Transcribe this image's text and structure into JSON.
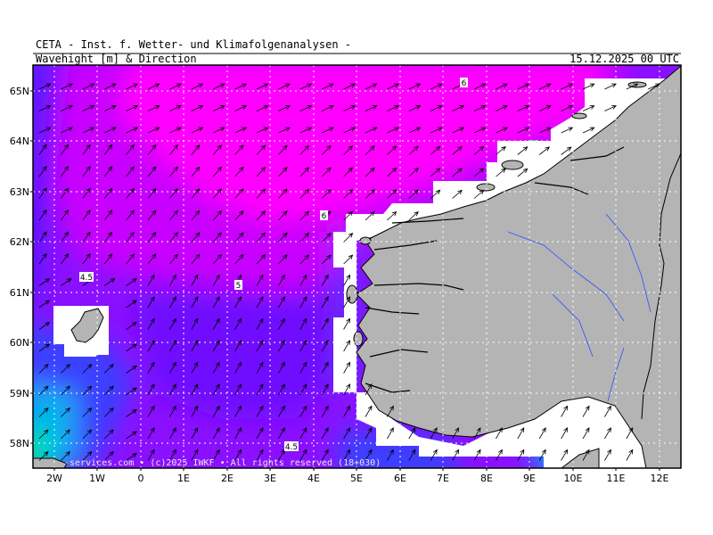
{
  "header": {
    "institution": "CETA - Inst. f. Wetter- und Klimafolgenanalysen -",
    "parameter": "Wavehight [m] & Direction",
    "valid_time": "15.12.2025 00 UTC"
  },
  "axes": {
    "lat_labels": [
      "65N",
      "64N",
      "63N",
      "62N",
      "61N",
      "60N",
      "59N",
      "58N"
    ],
    "lon_labels": [
      "2W",
      "1W",
      "0",
      "1E",
      "2E",
      "3E",
      "4E",
      "5E",
      "6E",
      "7E",
      "8E",
      "9E",
      "10E",
      "11E",
      "12E"
    ]
  },
  "contour_labels": [
    "6",
    "6",
    "5",
    "4.5",
    "4.5"
  ],
  "credit": "-services.com • (c)2025 IWKF • All rights reserved (18+030)",
  "colors": {
    "wave_6m": "#ff00ff",
    "wave_5m": "#c000ff",
    "wave_4m": "#8000ff",
    "wave_3m": "#4020ff",
    "wave_2m": "#00a0ff",
    "wave_1m": "#00e0c0",
    "land": "#b4b4b4",
    "coast": "#000000",
    "rivers": "#3050ff"
  }
}
